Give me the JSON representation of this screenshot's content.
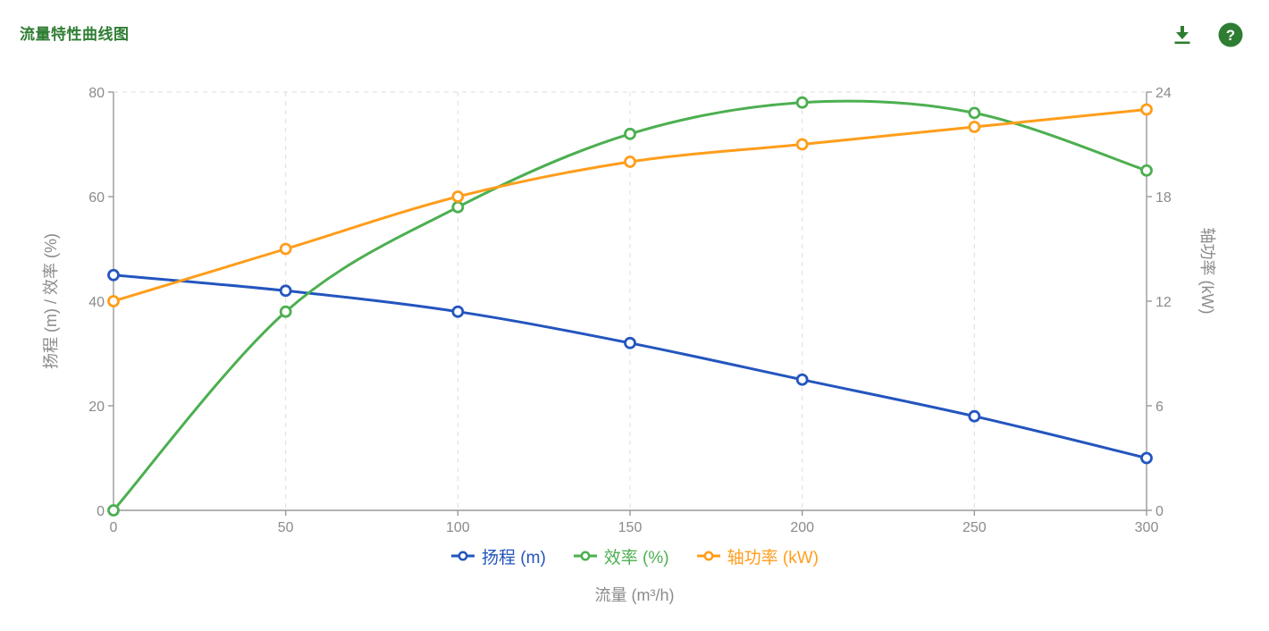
{
  "header": {
    "title": "流量特性曲线图"
  },
  "icons": {
    "download": "download-icon",
    "help": "help-icon",
    "help_glyph": "?"
  },
  "colors": {
    "title_green": "#2e7d32",
    "icon_green": "#2e7d32",
    "axis_text": "#8b8b8b",
    "axis_line": "#999999",
    "grid_line": "#dcdcdc",
    "background": "#ffffff"
  },
  "chart_data": {
    "type": "line",
    "title": "流量特性曲线图",
    "xlabel": "流量 (m³/h)",
    "x": [
      0,
      50,
      100,
      150,
      200,
      250,
      300
    ],
    "x_ticks": [
      0,
      50,
      100,
      150,
      200,
      250,
      300
    ],
    "y_left": {
      "label": "扬程 (m) / 效率 (%)",
      "min": 0,
      "max": 80,
      "ticks": [
        0,
        20,
        40,
        60,
        80
      ]
    },
    "y_right": {
      "label": "轴功率 (kW)",
      "min": 0,
      "max": 24,
      "ticks": [
        0,
        6,
        12,
        18,
        24
      ]
    },
    "series": [
      {
        "name": "扬程 (m)",
        "axis": "left",
        "color": "#2355be",
        "values": [
          45,
          42,
          38,
          32,
          25,
          18,
          10
        ]
      },
      {
        "name": "效率 (%)",
        "axis": "left",
        "color": "#4caf50",
        "values": [
          0,
          38,
          58,
          72,
          78,
          76,
          65
        ]
      },
      {
        "name": "轴功率 (kW)",
        "axis": "right",
        "color": "#ff9d1b",
        "values": [
          12,
          15,
          18,
          20,
          21,
          22,
          23
        ]
      }
    ],
    "smooth": true,
    "grid": {
      "vertical_dashed": true,
      "top_horizontal_dashed": true
    },
    "legend_position": "bottom"
  }
}
